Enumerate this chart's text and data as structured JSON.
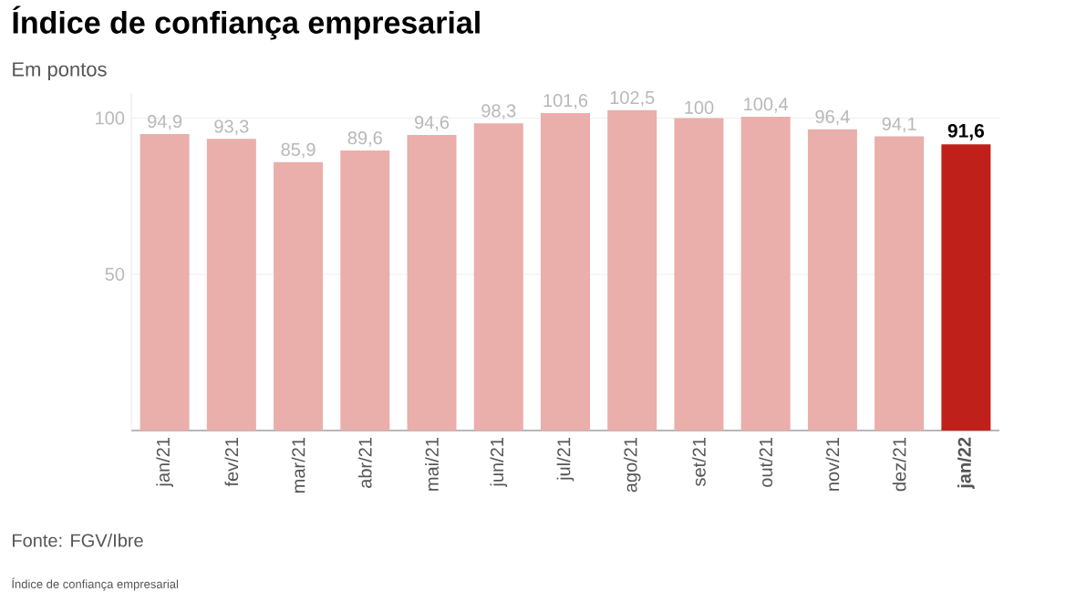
{
  "chart_data": {
    "type": "bar",
    "title": "Índice de confiança empresarial",
    "subtitle": "Em pontos",
    "categories": [
      "jan/21",
      "fev/21",
      "mar/21",
      "abr/21",
      "mai/21",
      "jun/21",
      "jul/21",
      "ago/21",
      "set/21",
      "out/21",
      "nov/21",
      "dez/21",
      "jan/22"
    ],
    "values": [
      94.9,
      93.3,
      85.9,
      89.6,
      94.6,
      98.3,
      101.6,
      102.5,
      100,
      100.4,
      96.4,
      94.1,
      91.6
    ],
    "value_labels": [
      "94,9",
      "93,3",
      "85,9",
      "89,6",
      "94,6",
      "98,3",
      "101,6",
      "102,5",
      "100",
      "100,4",
      "96,4",
      "94,1",
      "91,6"
    ],
    "colors": [
      "#eaaeab",
      "#eaaeab",
      "#eaaeab",
      "#eaaeab",
      "#eaaeab",
      "#eaaeab",
      "#eaaeab",
      "#eaaeab",
      "#eaaeab",
      "#eaaeab",
      "#eaaeab",
      "#eaaeab",
      "#c0201a"
    ],
    "ylim": [
      0,
      108
    ],
    "yticks": [
      50,
      100
    ],
    "grid": "y",
    "annotations": [
      "Fonte: FGV/Ibre",
      "Índice de confiança empresarial"
    ]
  }
}
